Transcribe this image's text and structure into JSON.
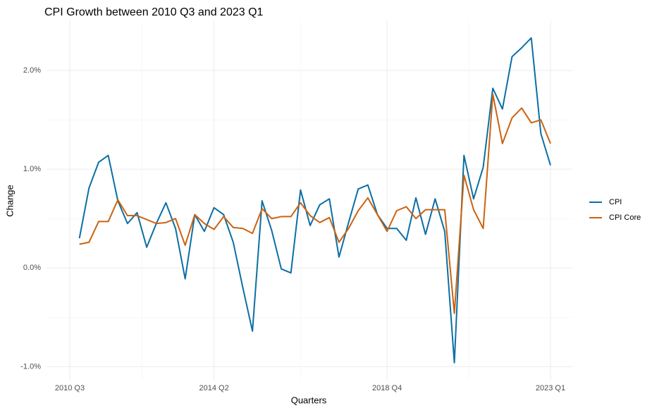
{
  "chart_data": {
    "type": "line",
    "title": "CPI Growth between 2010 Q3 and 2023 Q1",
    "x_label": "Quarters",
    "y_label": "Change",
    "categories": [
      "2010 Q3",
      null,
      null,
      null,
      null,
      null,
      null,
      null,
      null,
      null,
      null,
      null,
      null,
      null,
      null,
      "2014 Q2",
      null,
      null,
      null,
      null,
      null,
      null,
      null,
      null,
      null,
      null,
      null,
      null,
      null,
      null,
      null,
      null,
      null,
      "2018 Q4",
      null,
      null,
      null,
      null,
      null,
      null,
      null,
      null,
      null,
      null,
      null,
      null,
      null,
      null,
      null,
      null,
      "2023 Q1"
    ],
    "series": [
      {
        "name": "CPI",
        "color": "#0b6fa4",
        "values": [
          null,
          0.3,
          0.81,
          1.07,
          1.14,
          0.68,
          0.45,
          0.56,
          0.21,
          0.45,
          0.66,
          0.4,
          -0.11,
          0.54,
          0.37,
          0.61,
          0.54,
          0.26,
          -0.2,
          -0.64,
          0.68,
          0.38,
          -0.01,
          -0.05,
          0.79,
          0.43,
          0.64,
          0.7,
          0.11,
          0.46,
          0.8,
          0.84,
          0.54,
          0.4,
          0.4,
          0.28,
          0.71,
          0.34,
          0.7,
          0.37,
          -0.96,
          1.14,
          0.7,
          1.02,
          1.82,
          1.61,
          2.14,
          2.23,
          2.33,
          1.36,
          1.04
        ]
      },
      {
        "name": "CPI Core",
        "color": "#cc6210",
        "values": [
          null,
          0.24,
          0.26,
          0.47,
          0.47,
          0.69,
          0.53,
          0.53,
          0.49,
          0.45,
          0.46,
          0.5,
          0.23,
          0.54,
          0.45,
          0.39,
          0.52,
          0.41,
          0.4,
          0.35,
          0.6,
          0.5,
          0.52,
          0.52,
          0.66,
          0.53,
          0.46,
          0.51,
          0.26,
          0.4,
          0.58,
          0.71,
          0.54,
          0.37,
          0.58,
          0.62,
          0.5,
          0.59,
          0.59,
          0.59,
          -0.46,
          0.94,
          0.59,
          0.4,
          1.76,
          1.26,
          1.52,
          1.62,
          1.47,
          1.5,
          1.26
        ]
      }
    ],
    "ylim": [
      -1.14,
      2.5
    ],
    "yticks": [
      {
        "value": -1,
        "label": "-1.0%"
      },
      {
        "value": 0,
        "label": "0.0%"
      },
      {
        "value": 1,
        "label": "1.0%"
      },
      {
        "value": 2,
        "label": "2.0%"
      }
    ],
    "grid": true,
    "legend": "right"
  }
}
